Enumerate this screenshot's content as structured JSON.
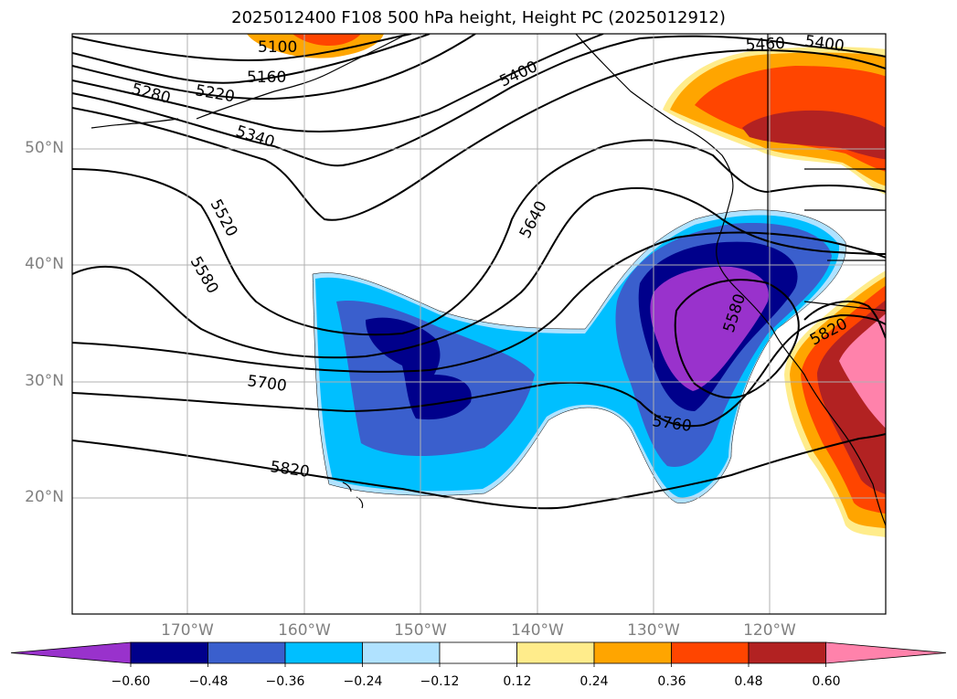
{
  "title": "2025012400 F108 500 hPa height, Height PC (2025012912)",
  "lat_labels": [
    "50°N",
    "40°N",
    "30°N",
    "20°N"
  ],
  "lon_labels": [
    "170°W",
    "160°W",
    "150°W",
    "140°W",
    "130°W",
    "120°W"
  ],
  "contour_labels": [
    "5100",
    "5160",
    "5220",
    "5280",
    "5340",
    "5400",
    "5400",
    "5460",
    "5520",
    "5580",
    "5580",
    "5640",
    "5700",
    "5760",
    "5820",
    "5820"
  ],
  "colorbar": {
    "tick_labels": [
      "−0.60",
      "−0.48",
      "−0.36",
      "−0.24",
      "−0.12",
      "0.12",
      "0.24",
      "0.36",
      "0.48",
      "0.60"
    ],
    "colors": [
      "#9932cc",
      "#00008b",
      "#3a5fcd",
      "#00bfff",
      "#b0e2ff",
      "#ffffff",
      "#ffec8b",
      "#ffa500",
      "#ff4500",
      "#b22222",
      "#ff82ab"
    ]
  }
}
